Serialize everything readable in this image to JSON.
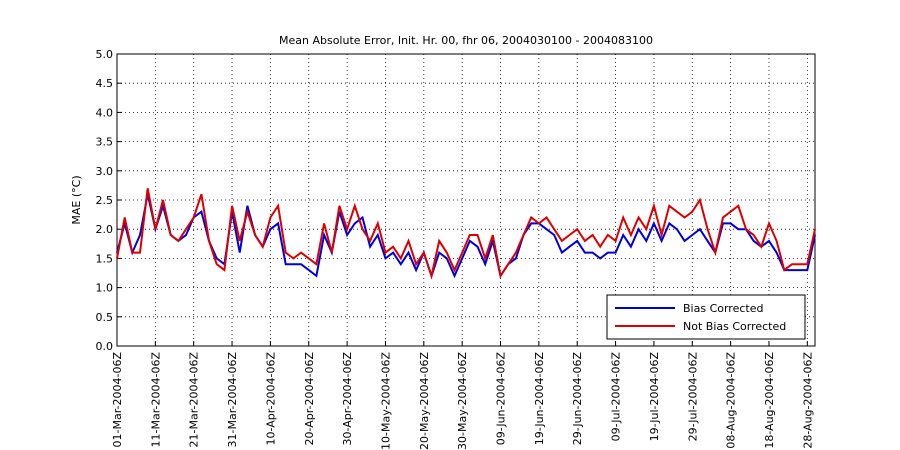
{
  "chart_data": {
    "type": "line",
    "title": "Mean Absolute Error, Init. Hr. 00, fhr 06, 2004030100 - 2004083100",
    "ylabel": "MAE (°C)",
    "x": [
      "2004-03-01",
      "2004-03-03",
      "2004-03-05",
      "2004-03-07",
      "2004-03-09",
      "2004-03-11",
      "2004-03-13",
      "2004-03-15",
      "2004-03-17",
      "2004-03-19",
      "2004-03-21",
      "2004-03-23",
      "2004-03-25",
      "2004-03-27",
      "2004-03-29",
      "2004-03-31",
      "2004-04-02",
      "2004-04-04",
      "2004-04-06",
      "2004-04-08",
      "2004-04-10",
      "2004-04-12",
      "2004-04-14",
      "2004-04-16",
      "2004-04-18",
      "2004-04-20",
      "2004-04-22",
      "2004-04-24",
      "2004-04-26",
      "2004-04-28",
      "2004-04-30",
      "2004-05-02",
      "2004-05-04",
      "2004-05-06",
      "2004-05-08",
      "2004-05-10",
      "2004-05-12",
      "2004-05-14",
      "2004-05-16",
      "2004-05-18",
      "2004-05-20",
      "2004-05-22",
      "2004-05-24",
      "2004-05-26",
      "2004-05-28",
      "2004-05-30",
      "2004-06-01",
      "2004-06-03",
      "2004-06-05",
      "2004-06-07",
      "2004-06-09",
      "2004-06-11",
      "2004-06-13",
      "2004-06-15",
      "2004-06-17",
      "2004-06-19",
      "2004-06-21",
      "2004-06-23",
      "2004-06-25",
      "2004-06-27",
      "2004-06-29",
      "2004-07-01",
      "2004-07-03",
      "2004-07-05",
      "2004-07-07",
      "2004-07-09",
      "2004-07-11",
      "2004-07-13",
      "2004-07-15",
      "2004-07-17",
      "2004-07-19",
      "2004-07-21",
      "2004-07-23",
      "2004-07-25",
      "2004-07-27",
      "2004-07-29",
      "2004-07-31",
      "2004-08-02",
      "2004-08-04",
      "2004-08-06",
      "2004-08-08",
      "2004-08-10",
      "2004-08-12",
      "2004-08-14",
      "2004-08-16",
      "2004-08-18",
      "2004-08-20",
      "2004-08-22",
      "2004-08-24",
      "2004-08-26",
      "2004-08-28",
      "2004-08-30"
    ],
    "series": [
      {
        "name": "Bias Corrected",
        "color": "#0000dd",
        "values": [
          1.6,
          2.1,
          1.6,
          1.9,
          2.6,
          2.0,
          2.4,
          1.9,
          1.8,
          1.9,
          2.2,
          2.3,
          1.8,
          1.5,
          1.4,
          2.3,
          1.6,
          2.4,
          1.9,
          1.7,
          2.0,
          2.1,
          1.4,
          1.4,
          1.4,
          1.3,
          1.2,
          1.9,
          1.6,
          2.3,
          1.9,
          2.1,
          2.2,
          1.7,
          1.9,
          1.5,
          1.6,
          1.4,
          1.6,
          1.3,
          1.6,
          1.2,
          1.6,
          1.5,
          1.2,
          1.5,
          1.8,
          1.7,
          1.4,
          1.8,
          1.2,
          1.4,
          1.5,
          1.9,
          2.1,
          2.1,
          2.0,
          1.9,
          1.6,
          1.7,
          1.8,
          1.6,
          1.6,
          1.5,
          1.6,
          1.6,
          1.9,
          1.7,
          2.0,
          1.8,
          2.1,
          1.8,
          2.1,
          2.0,
          1.8,
          1.9,
          2.0,
          1.8,
          1.6,
          2.1,
          2.1,
          2.0,
          2.0,
          1.8,
          1.7,
          1.8,
          1.6,
          1.3,
          1.3,
          1.3,
          1.3,
          1.9
        ]
      },
      {
        "name": "Not Bias Corrected",
        "color": "#dd0000",
        "values": [
          1.5,
          2.2,
          1.6,
          1.6,
          2.7,
          2.0,
          2.5,
          1.9,
          1.8,
          2.0,
          2.2,
          2.6,
          1.8,
          1.4,
          1.3,
          2.4,
          1.8,
          2.3,
          1.9,
          1.7,
          2.2,
          2.4,
          1.6,
          1.5,
          1.6,
          1.5,
          1.4,
          2.1,
          1.6,
          2.4,
          2.0,
          2.4,
          2.0,
          1.8,
          2.1,
          1.6,
          1.7,
          1.5,
          1.8,
          1.4,
          1.6,
          1.2,
          1.8,
          1.6,
          1.3,
          1.6,
          1.9,
          1.9,
          1.5,
          1.9,
          1.2,
          1.4,
          1.6,
          1.9,
          2.2,
          2.1,
          2.2,
          2.0,
          1.8,
          1.9,
          2.0,
          1.8,
          1.9,
          1.7,
          1.9,
          1.8,
          2.2,
          1.9,
          2.2,
          2.0,
          2.4,
          1.9,
          2.4,
          2.3,
          2.2,
          2.3,
          2.5,
          2.0,
          1.6,
          2.2,
          2.3,
          2.4,
          2.0,
          1.9,
          1.7,
          2.1,
          1.8,
          1.3,
          1.4,
          1.4,
          1.4,
          2.0
        ]
      }
    ],
    "xlim": [
      "2004-03-01",
      "2004-08-30"
    ],
    "xticks": [
      {
        "value": "2004-03-01",
        "label": "01-Mar-2004-06Z"
      },
      {
        "value": "2004-03-11",
        "label": "11-Mar-2004-06Z"
      },
      {
        "value": "2004-03-21",
        "label": "21-Mar-2004-06Z"
      },
      {
        "value": "2004-03-31",
        "label": "31-Mar-2004-06Z"
      },
      {
        "value": "2004-04-10",
        "label": "10-Apr-2004-06Z"
      },
      {
        "value": "2004-04-20",
        "label": "20-Apr-2004-06Z"
      },
      {
        "value": "2004-04-30",
        "label": "30-Apr-2004-06Z"
      },
      {
        "value": "2004-05-10",
        "label": "10-May-2004-06Z"
      },
      {
        "value": "2004-05-20",
        "label": "20-May-2004-06Z"
      },
      {
        "value": "2004-05-30",
        "label": "30-May-2004-06Z"
      },
      {
        "value": "2004-06-09",
        "label": "09-Jun-2004-06Z"
      },
      {
        "value": "2004-06-19",
        "label": "19-Jun-2004-06Z"
      },
      {
        "value": "2004-06-29",
        "label": "29-Jun-2004-06Z"
      },
      {
        "value": "2004-07-09",
        "label": "09-Jul-2004-06Z"
      },
      {
        "value": "2004-07-19",
        "label": "19-Jul-2004-06Z"
      },
      {
        "value": "2004-07-29",
        "label": "29-Jul-2004-06Z"
      },
      {
        "value": "2004-08-08",
        "label": "08-Aug-2004-06Z"
      },
      {
        "value": "2004-08-18",
        "label": "18-Aug-2004-06Z"
      },
      {
        "value": "2004-08-28",
        "label": "28-Aug-2004-06Z"
      }
    ],
    "ylim": [
      0,
      5
    ],
    "yticks": [
      {
        "value": 0,
        "label": "0.0"
      },
      {
        "value": 0.5,
        "label": "0.5"
      },
      {
        "value": 1,
        "label": "1.0"
      },
      {
        "value": 1.5,
        "label": "1.5"
      },
      {
        "value": 2,
        "label": "2.0"
      },
      {
        "value": 2.5,
        "label": "2.5"
      },
      {
        "value": 3,
        "label": "3.0"
      },
      {
        "value": 3.5,
        "label": "3.5"
      },
      {
        "value": 4,
        "label": "4.0"
      },
      {
        "value": 4.5,
        "label": "4.5"
      },
      {
        "value": 5,
        "label": "5.0"
      }
    ],
    "grid": true,
    "legend": "lower right"
  }
}
